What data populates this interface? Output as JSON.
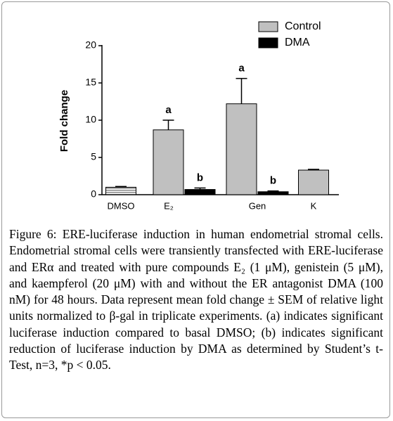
{
  "chart_data": {
    "type": "bar",
    "categories": [
      "DMSO",
      "E₂",
      "Gen",
      "K"
    ],
    "y_label": "Fold change",
    "ylim": [
      0,
      20
    ],
    "yticks": [
      0,
      5,
      10,
      15,
      20
    ],
    "legend": "top-right",
    "series": [
      {
        "name": "Control",
        "color": "#c0c0c0",
        "values": [
          1.0,
          8.7,
          12.2,
          3.3
        ],
        "errors": [
          0.1,
          1.3,
          3.4,
          0.1
        ],
        "hatched": [
          true,
          false,
          false,
          false
        ],
        "annotations": [
          null,
          "a",
          "a",
          null
        ]
      },
      {
        "name": "DMA",
        "color": "#000000",
        "values": [
          null,
          0.7,
          0.4,
          null
        ],
        "errors": [
          null,
          0.2,
          0.1,
          null
        ],
        "annotations": [
          null,
          "b",
          "b",
          null
        ]
      }
    ]
  },
  "caption": "Figure 6: ERE-luciferase induction in human endometrial stromal cells. Endometrial stromal cells were transiently transfected with ERE-luciferase and ERα and treated with pure compounds E₂ (1 μM), genistein (5 μM), and kaempferol (20 μM) with and without the ER antagonist DMA (100 nM) for 48 hours. Data represent mean fold change ± SEM of relative light units normalized to β-gal in triplicate experiments. (a) indicates significant luciferase induction compared to basal DMSO; (b) indicates significant reduction of luciferase induction by DMA as determined by Student’s t-Test, n=3, *p < 0.05."
}
